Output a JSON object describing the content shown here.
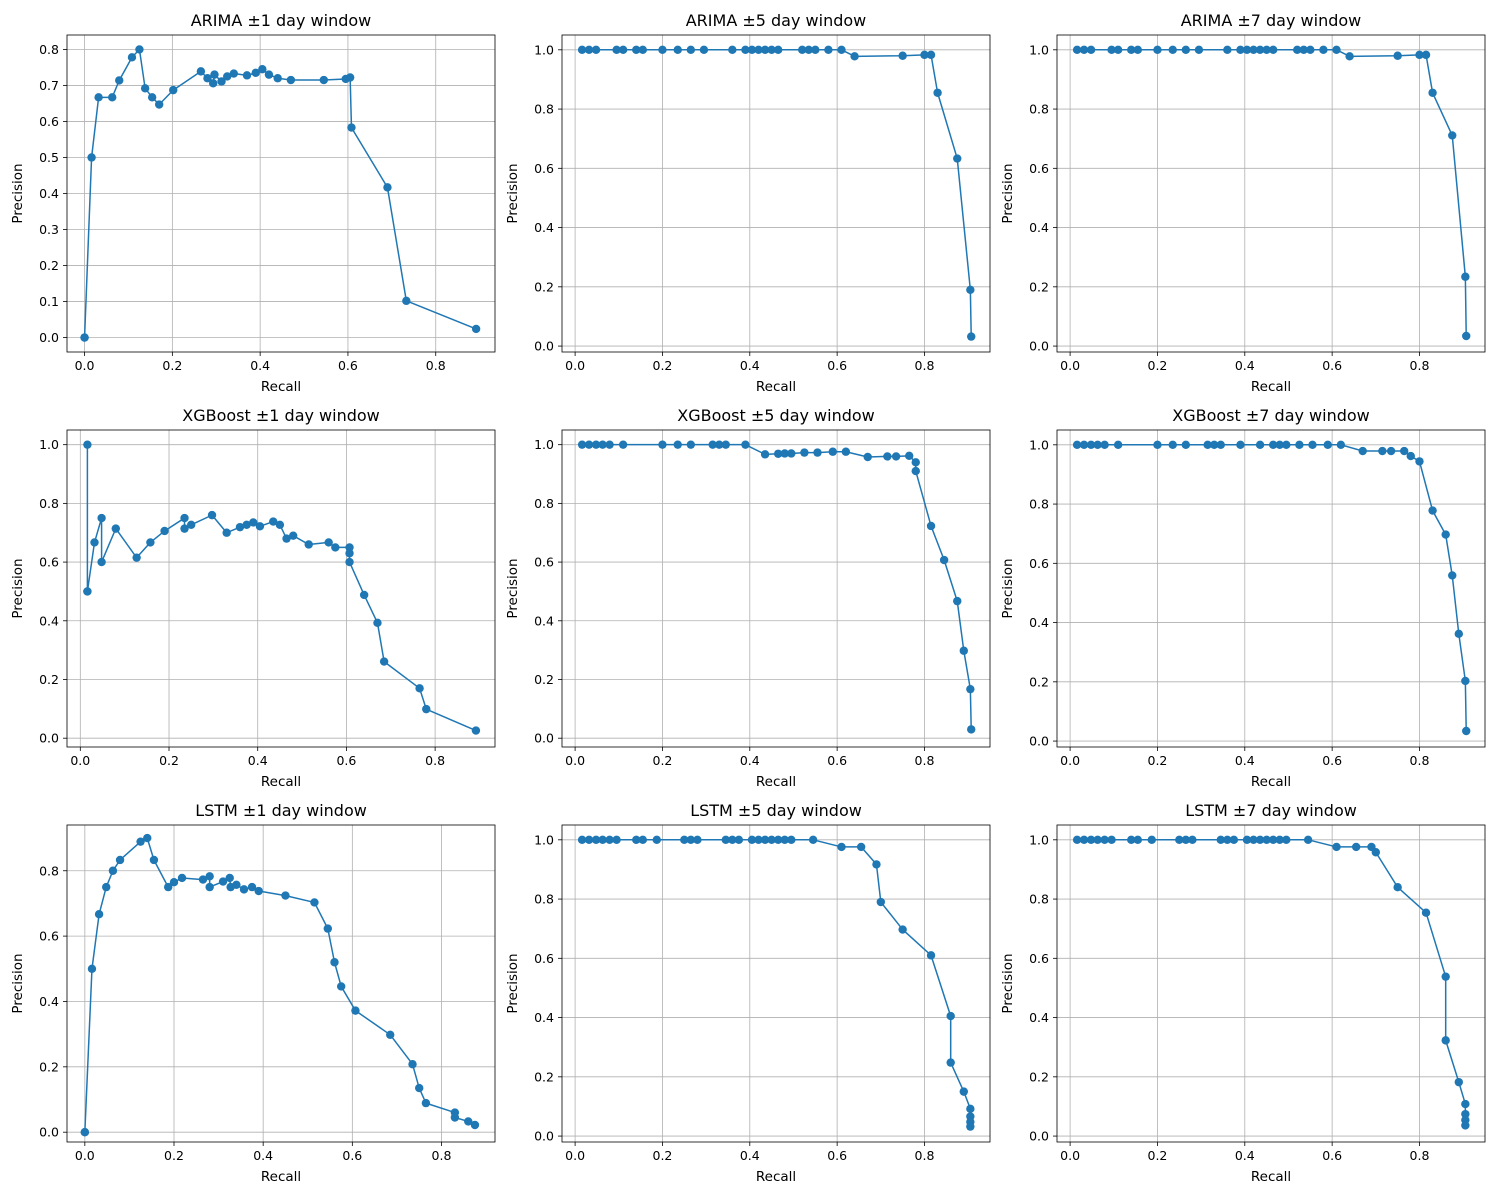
{
  "style": {
    "line_color": "#1f77b4",
    "grid_color": "#b0b0b0"
  },
  "chart_data": [
    {
      "type": "line",
      "title": "ARIMA ±1 day window",
      "xlabel": "Recall",
      "ylabel": "Precision",
      "xlim": [
        -0.04,
        0.935
      ],
      "ylim": [
        -0.04,
        0.84
      ],
      "grid": true,
      "xticks": [
        0,
        0.2,
        0.4,
        0.6,
        0.8
      ],
      "xtick_labels": [
        "0.0",
        "0.2",
        "0.4",
        "0.6",
        "0.8"
      ],
      "yticks": [
        0,
        0.1,
        0.2,
        0.3,
        0.4,
        0.5,
        0.6,
        0.7,
        0.8
      ],
      "ytick_labels": [
        "0.0",
        "0.1",
        "0.2",
        "0.3",
        "0.4",
        "0.5",
        "0.6",
        "0.7",
        "0.8"
      ],
      "x": [
        0.0,
        0.0,
        0.016,
        0.032,
        0.063,
        0.079,
        0.108,
        0.125,
        0.138,
        0.154,
        0.17,
        0.202,
        0.265,
        0.28,
        0.293,
        0.296,
        0.312,
        0.325,
        0.34,
        0.37,
        0.39,
        0.405,
        0.42,
        0.44,
        0.47,
        0.545,
        0.595,
        0.605,
        0.608,
        0.69,
        0.733,
        0.892
      ],
      "y": [
        0.0,
        0.0,
        0.5,
        0.667,
        0.667,
        0.714,
        0.778,
        0.8,
        0.692,
        0.667,
        0.647,
        0.687,
        0.739,
        0.72,
        0.706,
        0.73,
        0.711,
        0.725,
        0.733,
        0.728,
        0.735,
        0.745,
        0.73,
        0.72,
        0.715,
        0.715,
        0.718,
        0.722,
        0.583,
        0.417,
        0.102,
        0.024
      ]
    },
    {
      "type": "line",
      "title": "ARIMA ±5 day window",
      "xlabel": "Recall",
      "ylabel": "Precision",
      "xlim": [
        -0.03,
        0.95
      ],
      "ylim": [
        -0.02,
        1.05
      ],
      "grid": true,
      "xticks": [
        0,
        0.2,
        0.4,
        0.6,
        0.8
      ],
      "xtick_labels": [
        "0.0",
        "0.2",
        "0.4",
        "0.6",
        "0.8"
      ],
      "yticks": [
        0,
        0.2,
        0.4,
        0.6,
        0.8,
        1.0
      ],
      "ytick_labels": [
        "0.0",
        "0.2",
        "0.4",
        "0.6",
        "0.8",
        "1.0"
      ],
      "x": [
        0.016,
        0.032,
        0.048,
        0.095,
        0.11,
        0.14,
        0.155,
        0.2,
        0.235,
        0.265,
        0.295,
        0.36,
        0.39,
        0.405,
        0.42,
        0.435,
        0.45,
        0.465,
        0.52,
        0.535,
        0.55,
        0.58,
        0.61,
        0.64,
        0.75,
        0.8,
        0.815,
        0.83,
        0.875,
        0.905,
        0.907
      ],
      "y": [
        1.0,
        1.0,
        1.0,
        1.0,
        1.0,
        1.0,
        1.0,
        1.0,
        1.0,
        1.0,
        1.0,
        1.0,
        1.0,
        1.0,
        1.0,
        1.0,
        1.0,
        1.0,
        1.0,
        1.0,
        1.0,
        1.0,
        1.0,
        0.978,
        0.98,
        0.983,
        0.983,
        0.855,
        0.633,
        0.19,
        0.032
      ]
    },
    {
      "type": "line",
      "title": "ARIMA ±7 day window",
      "xlabel": "Recall",
      "ylabel": "Precision",
      "xlim": [
        -0.03,
        0.95
      ],
      "ylim": [
        -0.02,
        1.05
      ],
      "grid": true,
      "xticks": [
        0,
        0.2,
        0.4,
        0.6,
        0.8
      ],
      "xtick_labels": [
        "0.0",
        "0.2",
        "0.4",
        "0.6",
        "0.8"
      ],
      "yticks": [
        0,
        0.2,
        0.4,
        0.6,
        0.8,
        1.0
      ],
      "ytick_labels": [
        "0.0",
        "0.2",
        "0.4",
        "0.6",
        "0.8",
        "1.0"
      ],
      "x": [
        0.016,
        0.032,
        0.048,
        0.095,
        0.11,
        0.14,
        0.155,
        0.2,
        0.235,
        0.265,
        0.295,
        0.36,
        0.39,
        0.405,
        0.42,
        0.435,
        0.45,
        0.465,
        0.52,
        0.535,
        0.55,
        0.58,
        0.61,
        0.64,
        0.75,
        0.8,
        0.815,
        0.83,
        0.875,
        0.905,
        0.907
      ],
      "y": [
        1.0,
        1.0,
        1.0,
        1.0,
        1.0,
        1.0,
        1.0,
        1.0,
        1.0,
        1.0,
        1.0,
        1.0,
        1.0,
        1.0,
        1.0,
        1.0,
        1.0,
        1.0,
        1.0,
        1.0,
        1.0,
        1.0,
        1.0,
        0.978,
        0.98,
        0.983,
        0.983,
        0.855,
        0.711,
        0.234,
        0.034
      ]
    },
    {
      "type": "line",
      "title": "XGBoost ±1 day window",
      "xlabel": "Recall",
      "ylabel": "Precision",
      "xlim": [
        -0.03,
        0.935
      ],
      "ylim": [
        -0.03,
        1.05
      ],
      "grid": true,
      "xticks": [
        0,
        0.2,
        0.4,
        0.6,
        0.8
      ],
      "xtick_labels": [
        "0.0",
        "0.2",
        "0.4",
        "0.6",
        "0.8"
      ],
      "yticks": [
        0,
        0.2,
        0.4,
        0.6,
        0.8,
        1.0
      ],
      "ytick_labels": [
        "0.0",
        "0.2",
        "0.4",
        "0.6",
        "0.8",
        "1.0"
      ],
      "x": [
        0.016,
        0.016,
        0.016,
        0.032,
        0.048,
        0.048,
        0.08,
        0.127,
        0.158,
        0.19,
        0.235,
        0.235,
        0.25,
        0.297,
        0.33,
        0.36,
        0.375,
        0.39,
        0.405,
        0.435,
        0.45,
        0.465,
        0.48,
        0.515,
        0.56,
        0.575,
        0.607,
        0.607,
        0.607,
        0.64,
        0.67,
        0.685,
        0.765,
        0.78,
        0.892
      ],
      "y": [
        1.0,
        0.5,
        0.5,
        0.667,
        0.75,
        0.6,
        0.714,
        0.615,
        0.667,
        0.706,
        0.75,
        0.714,
        0.727,
        0.76,
        0.7,
        0.719,
        0.727,
        0.735,
        0.722,
        0.738,
        0.727,
        0.68,
        0.69,
        0.66,
        0.667,
        0.65,
        0.65,
        0.63,
        0.6,
        0.488,
        0.393,
        0.261,
        0.17,
        0.099,
        0.026
      ]
    },
    {
      "type": "line",
      "title": "XGBoost ±5 day window",
      "xlabel": "Recall",
      "ylabel": "Precision",
      "xlim": [
        -0.03,
        0.95
      ],
      "ylim": [
        -0.03,
        1.05
      ],
      "grid": true,
      "xticks": [
        0,
        0.2,
        0.4,
        0.6,
        0.8
      ],
      "xtick_labels": [
        "0.0",
        "0.2",
        "0.4",
        "0.6",
        "0.8"
      ],
      "yticks": [
        0,
        0.2,
        0.4,
        0.6,
        0.8,
        1.0
      ],
      "ytick_labels": [
        "0.0",
        "0.2",
        "0.4",
        "0.6",
        "0.8",
        "1.0"
      ],
      "x": [
        0.016,
        0.032,
        0.048,
        0.063,
        0.079,
        0.11,
        0.2,
        0.235,
        0.265,
        0.315,
        0.33,
        0.345,
        0.39,
        0.435,
        0.465,
        0.48,
        0.495,
        0.525,
        0.555,
        0.59,
        0.62,
        0.67,
        0.715,
        0.735,
        0.765,
        0.78,
        0.78,
        0.815,
        0.845,
        0.875,
        0.89,
        0.905,
        0.907
      ],
      "y": [
        1.0,
        1.0,
        1.0,
        1.0,
        1.0,
        1.0,
        1.0,
        1.0,
        1.0,
        1.0,
        1.0,
        1.0,
        1.0,
        0.967,
        0.969,
        0.97,
        0.97,
        0.973,
        0.973,
        0.976,
        0.976,
        0.958,
        0.96,
        0.96,
        0.962,
        0.94,
        0.91,
        0.723,
        0.607,
        0.467,
        0.298,
        0.167,
        0.03
      ]
    },
    {
      "type": "line",
      "title": "XGBoost ±7 day window",
      "xlabel": "Recall",
      "ylabel": "Precision",
      "xlim": [
        -0.03,
        0.95
      ],
      "ylim": [
        -0.02,
        1.05
      ],
      "grid": true,
      "xticks": [
        0,
        0.2,
        0.4,
        0.6,
        0.8
      ],
      "xtick_labels": [
        "0.0",
        "0.2",
        "0.4",
        "0.6",
        "0.8"
      ],
      "yticks": [
        0,
        0.2,
        0.4,
        0.6,
        0.8,
        1.0
      ],
      "ytick_labels": [
        "0.0",
        "0.2",
        "0.4",
        "0.6",
        "0.8",
        "1.0"
      ],
      "x": [
        0.016,
        0.032,
        0.048,
        0.063,
        0.079,
        0.11,
        0.2,
        0.235,
        0.265,
        0.315,
        0.33,
        0.345,
        0.39,
        0.435,
        0.465,
        0.48,
        0.495,
        0.525,
        0.555,
        0.59,
        0.62,
        0.67,
        0.715,
        0.735,
        0.765,
        0.78,
        0.8,
        0.83,
        0.86,
        0.875,
        0.89,
        0.905,
        0.907
      ],
      "y": [
        1.0,
        1.0,
        1.0,
        1.0,
        1.0,
        1.0,
        1.0,
        1.0,
        1.0,
        1.0,
        1.0,
        1.0,
        1.0,
        1.0,
        1.0,
        1.0,
        1.0,
        1.0,
        1.0,
        1.0,
        1.0,
        0.979,
        0.979,
        0.979,
        0.979,
        0.962,
        0.944,
        0.778,
        0.697,
        0.559,
        0.362,
        0.203,
        0.034
      ]
    },
    {
      "type": "line",
      "title": "LSTM ±1 day window",
      "xlabel": "Recall",
      "ylabel": "Precision",
      "xlim": [
        -0.04,
        0.92
      ],
      "ylim": [
        -0.03,
        0.94
      ],
      "grid": true,
      "xticks": [
        0,
        0.2,
        0.4,
        0.6,
        0.8
      ],
      "xtick_labels": [
        "0.0",
        "0.2",
        "0.4",
        "0.6",
        "0.8"
      ],
      "yticks": [
        0,
        0.2,
        0.4,
        0.6,
        0.8
      ],
      "ytick_labels": [
        "0.0",
        "0.2",
        "0.4",
        "0.6",
        "0.8"
      ],
      "x": [
        0.0,
        0.0,
        0.016,
        0.032,
        0.048,
        0.063,
        0.079,
        0.125,
        0.14,
        0.155,
        0.187,
        0.2,
        0.218,
        0.265,
        0.28,
        0.28,
        0.31,
        0.325,
        0.327,
        0.34,
        0.357,
        0.375,
        0.39,
        0.45,
        0.515,
        0.545,
        0.56,
        0.575,
        0.607,
        0.685,
        0.735,
        0.75,
        0.765,
        0.83,
        0.83,
        0.86,
        0.875
      ],
      "y": [
        0.0,
        0.0,
        0.5,
        0.667,
        0.75,
        0.8,
        0.833,
        0.889,
        0.9,
        0.833,
        0.75,
        0.765,
        0.778,
        0.773,
        0.783,
        0.75,
        0.767,
        0.778,
        0.75,
        0.757,
        0.743,
        0.75,
        0.738,
        0.724,
        0.703,
        0.623,
        0.52,
        0.446,
        0.372,
        0.298,
        0.208,
        0.135,
        0.089,
        0.06,
        0.045,
        0.033,
        0.022
      ]
    },
    {
      "type": "line",
      "title": "LSTM ±5 day window",
      "xlabel": "Recall",
      "ylabel": "Precision",
      "xlim": [
        -0.03,
        0.95
      ],
      "ylim": [
        -0.02,
        1.05
      ],
      "grid": true,
      "xticks": [
        0,
        0.2,
        0.4,
        0.6,
        0.8
      ],
      "xtick_labels": [
        "0.0",
        "0.2",
        "0.4",
        "0.6",
        "0.8"
      ],
      "yticks": [
        0,
        0.2,
        0.4,
        0.6,
        0.8,
        1.0
      ],
      "ytick_labels": [
        "0.0",
        "0.2",
        "0.4",
        "0.6",
        "0.8",
        "1.0"
      ],
      "x": [
        0.016,
        0.032,
        0.048,
        0.063,
        0.079,
        0.095,
        0.14,
        0.155,
        0.187,
        0.25,
        0.265,
        0.28,
        0.345,
        0.36,
        0.375,
        0.405,
        0.42,
        0.435,
        0.45,
        0.465,
        0.48,
        0.495,
        0.545,
        0.61,
        0.655,
        0.69,
        0.7,
        0.75,
        0.815,
        0.86,
        0.86,
        0.89,
        0.905,
        0.905,
        0.905,
        0.905
      ],
      "y": [
        1.0,
        1.0,
        1.0,
        1.0,
        1.0,
        1.0,
        1.0,
        1.0,
        1.0,
        1.0,
        1.0,
        1.0,
        1.0,
        1.0,
        1.0,
        1.0,
        1.0,
        1.0,
        1.0,
        1.0,
        1.0,
        1.0,
        1.0,
        0.976,
        0.976,
        0.917,
        0.79,
        0.697,
        0.61,
        0.405,
        0.248,
        0.15,
        0.092,
        0.066,
        0.048,
        0.032
      ]
    },
    {
      "type": "line",
      "title": "LSTM ±7 day window",
      "xlabel": "Recall",
      "ylabel": "Precision",
      "xlim": [
        -0.03,
        0.95
      ],
      "ylim": [
        -0.02,
        1.05
      ],
      "grid": true,
      "xticks": [
        0,
        0.2,
        0.4,
        0.6,
        0.8
      ],
      "xtick_labels": [
        "0.0",
        "0.2",
        "0.4",
        "0.6",
        "0.8"
      ],
      "yticks": [
        0,
        0.2,
        0.4,
        0.6,
        0.8,
        1.0
      ],
      "ytick_labels": [
        "0.0",
        "0.2",
        "0.4",
        "0.6",
        "0.8",
        "1.0"
      ],
      "x": [
        0.016,
        0.032,
        0.048,
        0.063,
        0.079,
        0.095,
        0.14,
        0.155,
        0.187,
        0.25,
        0.265,
        0.28,
        0.345,
        0.36,
        0.375,
        0.405,
        0.42,
        0.435,
        0.45,
        0.465,
        0.48,
        0.495,
        0.545,
        0.61,
        0.655,
        0.69,
        0.7,
        0.75,
        0.815,
        0.86,
        0.86,
        0.89,
        0.905,
        0.905,
        0.905,
        0.905
      ],
      "y": [
        1.0,
        1.0,
        1.0,
        1.0,
        1.0,
        1.0,
        1.0,
        1.0,
        1.0,
        1.0,
        1.0,
        1.0,
        1.0,
        1.0,
        1.0,
        1.0,
        1.0,
        1.0,
        1.0,
        1.0,
        1.0,
        1.0,
        1.0,
        0.976,
        0.976,
        0.976,
        0.958,
        0.84,
        0.754,
        0.538,
        0.323,
        0.182,
        0.108,
        0.074,
        0.054,
        0.036
      ]
    }
  ]
}
